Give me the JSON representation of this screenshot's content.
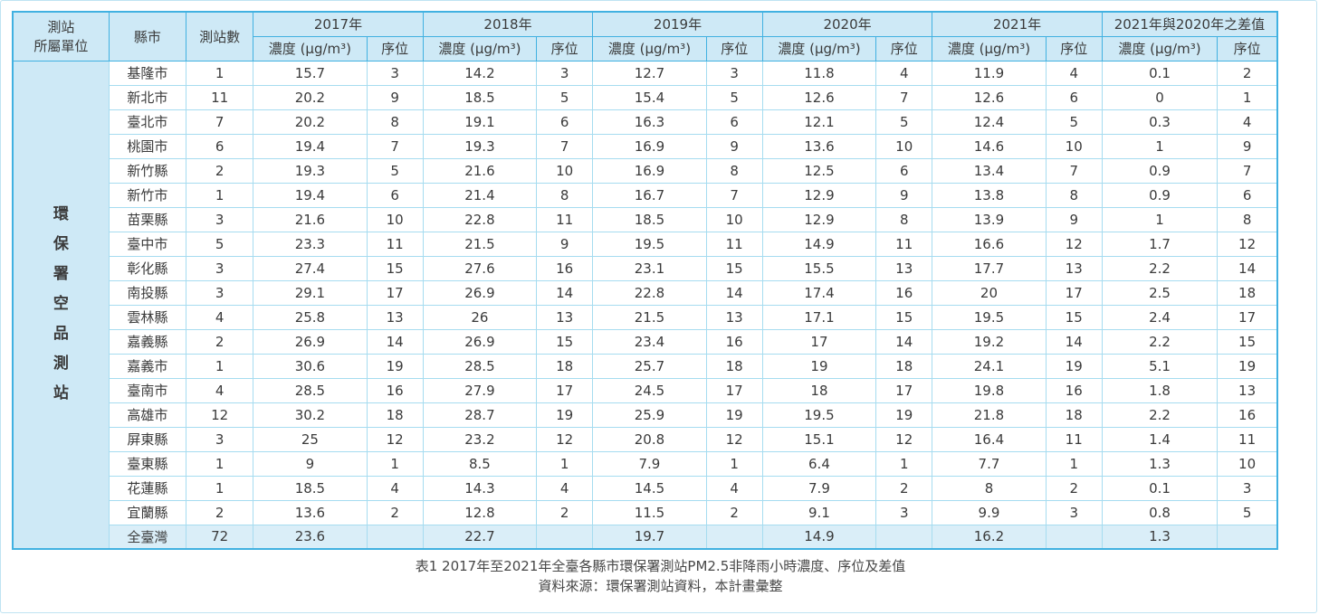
{
  "page": {
    "caption_line1": "表1 2017年至2021年全臺各縣市環保署測站PM2.5非降雨小時濃度、序位及差值",
    "caption_line2": "資料來源：環保署測站資料，本計畫彙整"
  },
  "colors": {
    "border_strong": "#41b1e1",
    "border_light": "#a6dcf0",
    "header_fill": "#cee9f6",
    "total_row_fill": "#daeef8",
    "page_frame": "#bfe3f2"
  },
  "table": {
    "headers": {
      "unit_line1": "測站",
      "unit_line2": "所屬單位",
      "county": "縣市",
      "station_count": "測站數",
      "conc": "濃度 (μg/m³)",
      "rank": "序位"
    },
    "year_groups": [
      {
        "label": "2017年"
      },
      {
        "label": "2018年"
      },
      {
        "label": "2019年"
      },
      {
        "label": "2020年"
      },
      {
        "label": "2021年"
      },
      {
        "label": "2021年與2020年之差值"
      }
    ],
    "unit_label": "環保署空品測站",
    "rows": [
      {
        "county": "基隆市",
        "stations": "1",
        "values": [
          "15.7",
          "3",
          "14.2",
          "3",
          "12.7",
          "3",
          "11.8",
          "4",
          "11.9",
          "4",
          "0.1",
          "2"
        ]
      },
      {
        "county": "新北市",
        "stations": "11",
        "values": [
          "20.2",
          "9",
          "18.5",
          "5",
          "15.4",
          "5",
          "12.6",
          "7",
          "12.6",
          "6",
          "0",
          "1"
        ]
      },
      {
        "county": "臺北市",
        "stations": "7",
        "values": [
          "20.2",
          "8",
          "19.1",
          "6",
          "16.3",
          "6",
          "12.1",
          "5",
          "12.4",
          "5",
          "0.3",
          "4"
        ]
      },
      {
        "county": "桃園市",
        "stations": "6",
        "values": [
          "19.4",
          "7",
          "19.3",
          "7",
          "16.9",
          "9",
          "13.6",
          "10",
          "14.6",
          "10",
          "1",
          "9"
        ]
      },
      {
        "county": "新竹縣",
        "stations": "2",
        "values": [
          "19.3",
          "5",
          "21.6",
          "10",
          "16.9",
          "8",
          "12.5",
          "6",
          "13.4",
          "7",
          "0.9",
          "7"
        ]
      },
      {
        "county": "新竹市",
        "stations": "1",
        "values": [
          "19.4",
          "6",
          "21.4",
          "8",
          "16.7",
          "7",
          "12.9",
          "9",
          "13.8",
          "8",
          "0.9",
          "6"
        ]
      },
      {
        "county": "苗栗縣",
        "stations": "3",
        "values": [
          "21.6",
          "10",
          "22.8",
          "11",
          "18.5",
          "10",
          "12.9",
          "8",
          "13.9",
          "9",
          "1",
          "8"
        ]
      },
      {
        "county": "臺中市",
        "stations": "5",
        "values": [
          "23.3",
          "11",
          "21.5",
          "9",
          "19.5",
          "11",
          "14.9",
          "11",
          "16.6",
          "12",
          "1.7",
          "12"
        ]
      },
      {
        "county": "彰化縣",
        "stations": "3",
        "values": [
          "27.4",
          "15",
          "27.6",
          "16",
          "23.1",
          "15",
          "15.5",
          "13",
          "17.7",
          "13",
          "2.2",
          "14"
        ]
      },
      {
        "county": "南投縣",
        "stations": "3",
        "values": [
          "29.1",
          "17",
          "26.9",
          "14",
          "22.8",
          "14",
          "17.4",
          "16",
          "20",
          "17",
          "2.5",
          "18"
        ]
      },
      {
        "county": "雲林縣",
        "stations": "4",
        "values": [
          "25.8",
          "13",
          "26",
          "13",
          "21.5",
          "13",
          "17.1",
          "15",
          "19.5",
          "15",
          "2.4",
          "17"
        ]
      },
      {
        "county": "嘉義縣",
        "stations": "2",
        "values": [
          "26.9",
          "14",
          "26.9",
          "15",
          "23.4",
          "16",
          "17",
          "14",
          "19.2",
          "14",
          "2.2",
          "15"
        ]
      },
      {
        "county": "嘉義市",
        "stations": "1",
        "values": [
          "30.6",
          "19",
          "28.5",
          "18",
          "25.7",
          "18",
          "19",
          "18",
          "24.1",
          "19",
          "5.1",
          "19"
        ]
      },
      {
        "county": "臺南市",
        "stations": "4",
        "values": [
          "28.5",
          "16",
          "27.9",
          "17",
          "24.5",
          "17",
          "18",
          "17",
          "19.8",
          "16",
          "1.8",
          "13"
        ]
      },
      {
        "county": "高雄市",
        "stations": "12",
        "values": [
          "30.2",
          "18",
          "28.7",
          "19",
          "25.9",
          "19",
          "19.5",
          "19",
          "21.8",
          "18",
          "2.2",
          "16"
        ]
      },
      {
        "county": "屏東縣",
        "stations": "3",
        "values": [
          "25",
          "12",
          "23.2",
          "12",
          "20.8",
          "12",
          "15.1",
          "12",
          "16.4",
          "11",
          "1.4",
          "11"
        ]
      },
      {
        "county": "臺東縣",
        "stations": "1",
        "values": [
          "9",
          "1",
          "8.5",
          "1",
          "7.9",
          "1",
          "6.4",
          "1",
          "7.7",
          "1",
          "1.3",
          "10"
        ]
      },
      {
        "county": "花蓮縣",
        "stations": "1",
        "values": [
          "18.5",
          "4",
          "14.3",
          "4",
          "14.5",
          "4",
          "7.9",
          "2",
          "8",
          "2",
          "0.1",
          "3"
        ]
      },
      {
        "county": "宜蘭縣",
        "stations": "2",
        "values": [
          "13.6",
          "2",
          "12.8",
          "2",
          "11.5",
          "2",
          "9.1",
          "3",
          "9.9",
          "3",
          "0.8",
          "5"
        ]
      }
    ],
    "total_row": {
      "total": true,
      "county": "全臺灣",
      "stations": "72",
      "values": [
        "23.6",
        null,
        "22.7",
        null,
        "19.7",
        null,
        "14.9",
        null,
        "16.2",
        null,
        "1.3",
        null
      ]
    }
  }
}
